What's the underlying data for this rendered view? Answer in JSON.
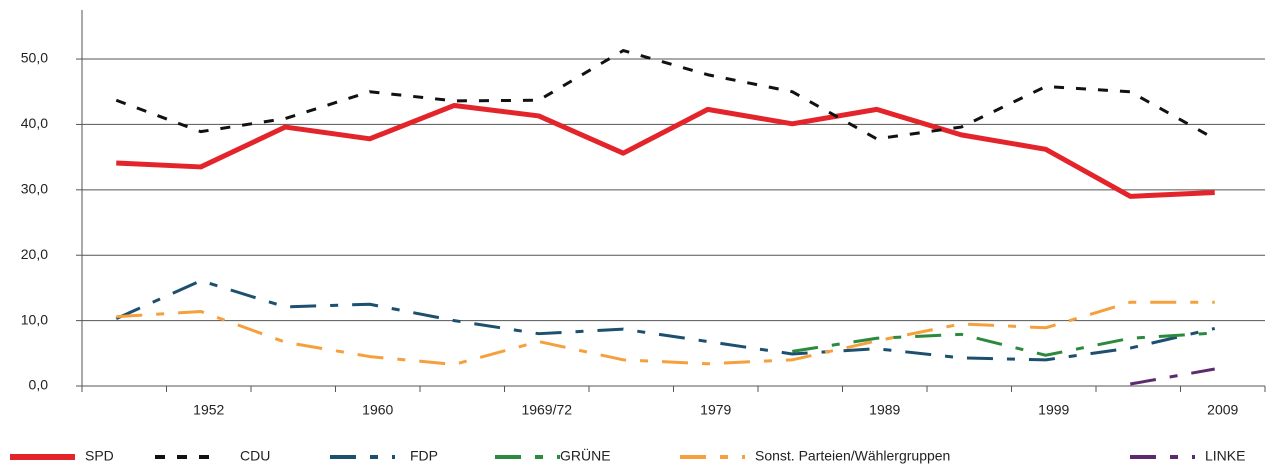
{
  "chart_data": {
    "type": "line",
    "categories": [
      null,
      "1952",
      null,
      "1960",
      null,
      "1969/72",
      null,
      "1979",
      null,
      "1989",
      null,
      "1999",
      null,
      "2009"
    ],
    "series": [
      {
        "name": "SPD",
        "color": "#e3242b",
        "values": [
          34.1,
          33.5,
          39.6,
          37.8,
          42.9,
          41.3,
          35.6,
          42.3,
          40.1,
          42.3,
          38.4,
          36.2,
          29.0,
          29.6
        ]
      },
      {
        "name": "CDU",
        "color": "#111111",
        "values": [
          43.7,
          38.9,
          40.9,
          45.0,
          43.6,
          43.7,
          51.3,
          47.6,
          45.0,
          37.8,
          39.6,
          45.8,
          45.0,
          37.8
        ]
      },
      {
        "name": "FDP",
        "color": "#1d4f6e",
        "values": [
          10.3,
          16.1,
          12.1,
          12.5,
          10.0,
          8.0,
          8.7,
          6.8,
          4.9,
          5.7,
          4.3,
          4.0,
          5.8,
          8.8
        ]
      },
      {
        "name": "GRÜNE",
        "color": "#2b8a3e",
        "values": [
          null,
          null,
          null,
          null,
          null,
          null,
          null,
          null,
          5.3,
          7.3,
          7.9,
          4.7,
          7.3,
          8.1
        ]
      },
      {
        "name": "Sonst. Parteien/Wählergruppen",
        "color": "#f5a03c",
        "values": [
          10.6,
          11.4,
          6.7,
          4.5,
          3.3,
          6.8,
          4.0,
          3.4,
          4.0,
          6.9,
          9.5,
          8.9,
          12.8,
          12.8
        ]
      },
      {
        "name": "LINKE",
        "color": "#5e2a6e",
        "values": [
          null,
          null,
          null,
          null,
          null,
          null,
          null,
          null,
          null,
          null,
          null,
          null,
          0.3,
          2.6
        ]
      }
    ],
    "ylim": [
      0,
      57.5
    ],
    "yticks": [
      {
        "value": 0,
        "label": "0,0"
      },
      {
        "value": 10,
        "label": "10,0"
      },
      {
        "value": 20,
        "label": "20,0"
      },
      {
        "value": 30,
        "label": "30,0"
      },
      {
        "value": 40,
        "label": "40,0"
      },
      {
        "value": 50,
        "label": "50,0"
      }
    ],
    "grid": true
  }
}
